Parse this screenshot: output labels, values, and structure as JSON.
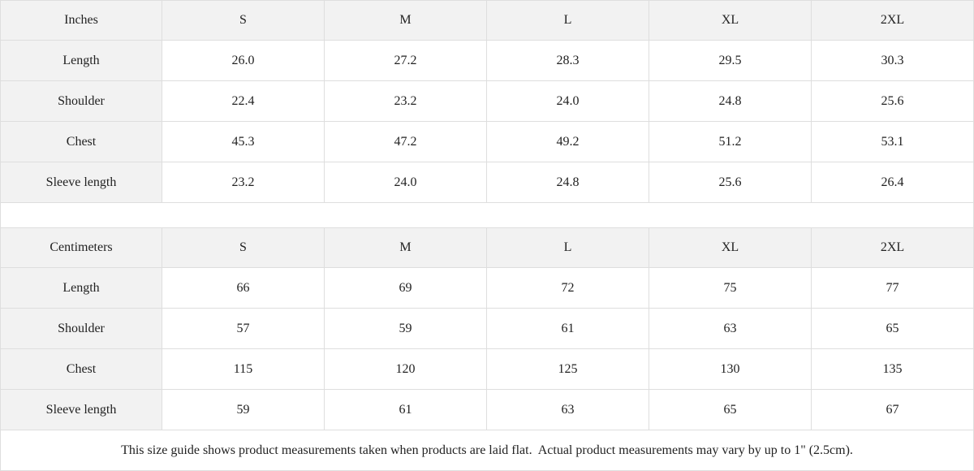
{
  "tables": [
    {
      "header": [
        "Inches",
        "S",
        "M",
        "L",
        "XL",
        "2XL"
      ],
      "rows": [
        [
          "Length",
          "26.0",
          "27.2",
          "28.3",
          "29.5",
          "30.3"
        ],
        [
          "Shoulder",
          "22.4",
          "23.2",
          "24.0",
          "24.8",
          "25.6"
        ],
        [
          "Chest",
          "45.3",
          "47.2",
          "49.2",
          "51.2",
          "53.1"
        ],
        [
          "Sleeve length",
          "23.2",
          "24.0",
          "24.8",
          "25.6",
          "26.4"
        ]
      ]
    },
    {
      "header": [
        "Centimeters",
        "S",
        "M",
        "L",
        "XL",
        "2XL"
      ],
      "rows": [
        [
          "Length",
          "66",
          "69",
          "72",
          "75",
          "77"
        ],
        [
          "Shoulder",
          "57",
          "59",
          "61",
          "63",
          "65"
        ],
        [
          "Chest",
          "115",
          "120",
          "125",
          "130",
          "135"
        ],
        [
          "Sleeve length",
          "59",
          "61",
          "63",
          "65",
          "67"
        ]
      ]
    }
  ],
  "note": "This size guide shows product measurements taken when products are laid flat.  Actual product measurements may vary by up to 1\" (2.5cm)."
}
